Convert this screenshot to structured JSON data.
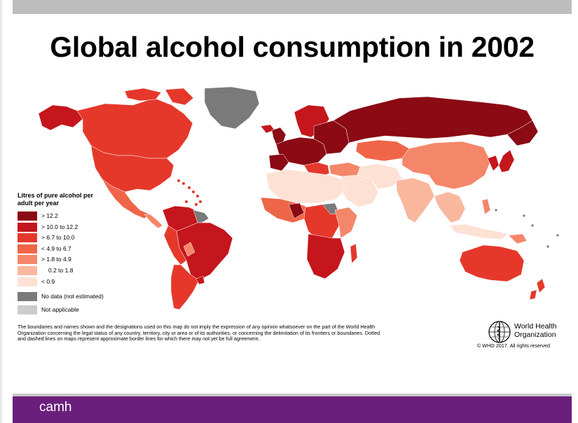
{
  "title": "Global alcohol consumption in 2002",
  "legend": {
    "title": "Litres of pure alcohol per adult per year",
    "items": [
      {
        "label": "> 12.2",
        "color": "#8b0a14"
      },
      {
        "label": "> 10.0 to 12.2",
        "color": "#c4161c"
      },
      {
        "label": ">  6.7 to 10.0",
        "color": "#e5382b"
      },
      {
        "label": "<  4.9 to   6.7",
        "color": "#ef6548"
      },
      {
        "label": ">  1.8 to   4.9",
        "color": "#f4866a"
      },
      {
        "label": "0.2 to   1.8",
        "color": "#f9b89e"
      },
      {
        "label": "<  0.9",
        "color": "#fde1d5"
      }
    ],
    "no_data": {
      "label": "No data (not estimated)",
      "color": "#7a7a7a"
    },
    "not_applicable": {
      "label": "Not applicable",
      "color": "#cccccc"
    }
  },
  "disclaimer": "The boundaries and names shown and the designations used on this map do not imply the expression of any opinion whatsoever on the part of the World Health Organization concerning the legal status of any country, territory, city or area or of its authorities, or concerning the delimitation of its frontiers or boundaries. Dotted and dashed lines on maps represent approximate border lines for which there may not yet be full agreement.",
  "who": {
    "name": "World Health Organization",
    "copyright": "© WHO 2017. All rights reserved"
  },
  "footer": {
    "brand": "camh"
  }
}
